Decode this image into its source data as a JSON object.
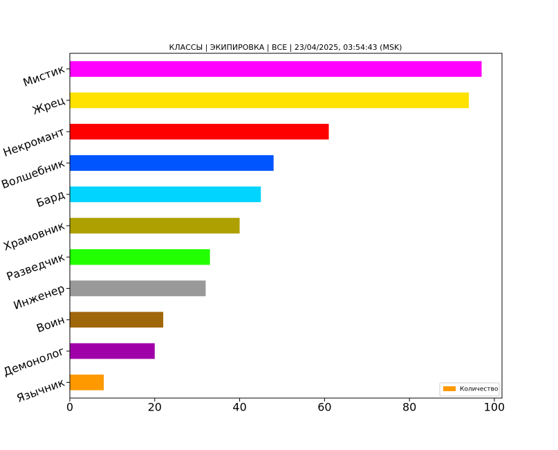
{
  "chart_data": {
    "type": "barh",
    "title": "КЛАССЫ | ЭКИПИРОВКА | ВСЕ | 23/04/2025, 03:54:43 (MSK)",
    "categories": [
      "Мистик",
      "Жрец",
      "Некромант",
      "Волшебник",
      "Бард",
      "Храмовник",
      "Разведчик",
      "Инженер",
      "Воин",
      "Демонолог",
      "Язычник"
    ],
    "series": [
      {
        "name": "Количество",
        "values": [
          97,
          94,
          61,
          48,
          45,
          40,
          33,
          32,
          22,
          20,
          8
        ],
        "colors": [
          "#ff00ff",
          "#ffe200",
          "#ff0000",
          "#0055ff",
          "#00d4ff",
          "#ada000",
          "#22ff00",
          "#999999",
          "#a0660a",
          "#a000a8",
          "#ff9900"
        ]
      }
    ],
    "xlim": [
      0,
      101.8
    ],
    "xticks": [
      0,
      20,
      40,
      60,
      80,
      100
    ],
    "legend": "lower right"
  }
}
